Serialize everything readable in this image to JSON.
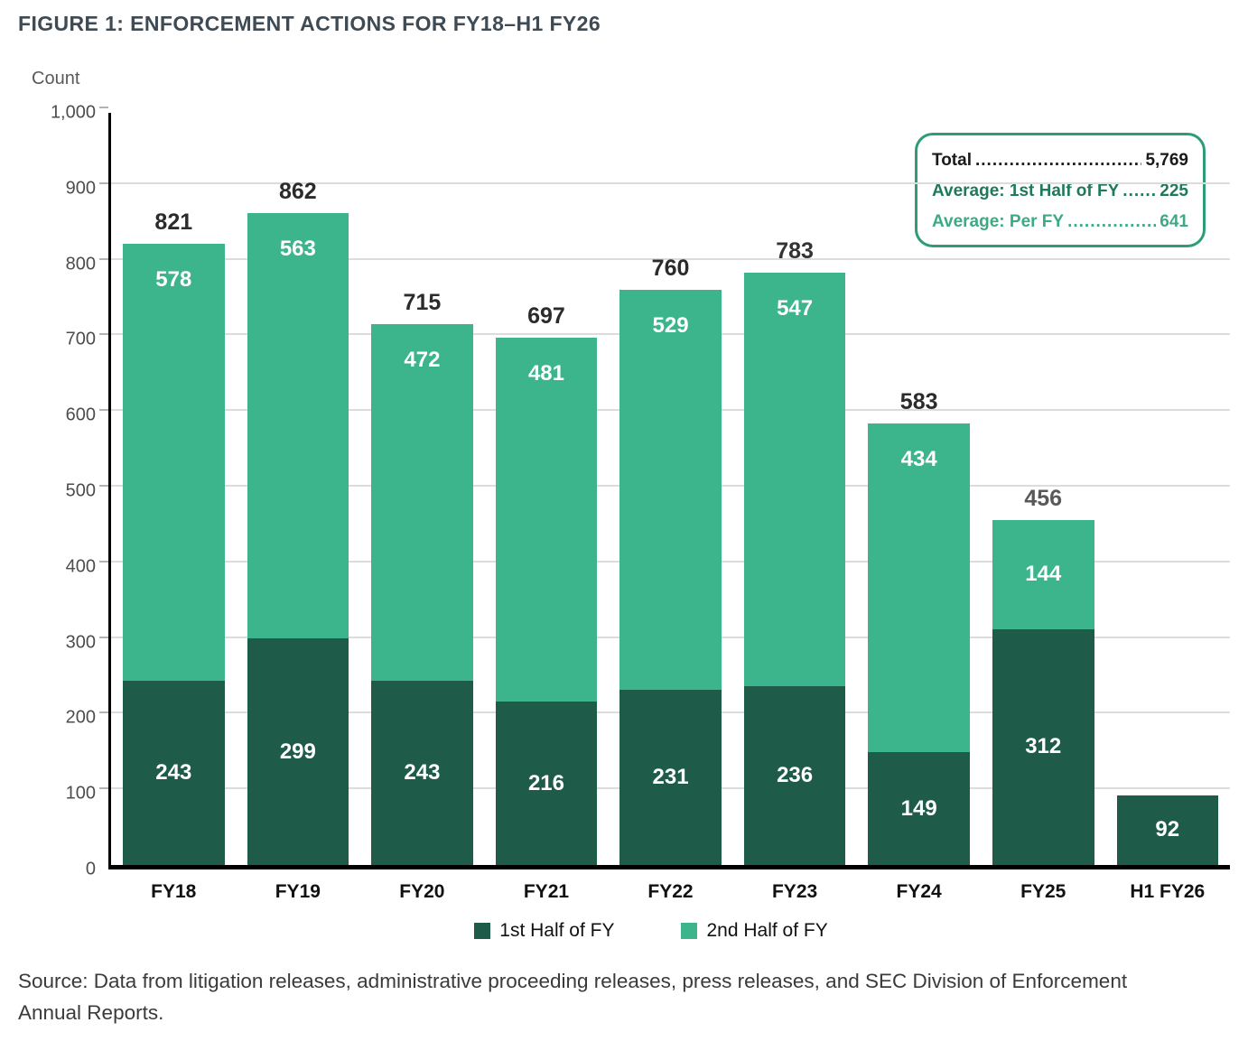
{
  "figure": {
    "title": "FIGURE 1: ENFORCEMENT ACTIONS FOR FY18–H1 FY26",
    "y_axis_title": "Count",
    "source": "Source: Data from litigation releases, administrative proceeding releases, press releases, and SEC Division of Enforcement Annual Reports."
  },
  "stats_box": {
    "lines": [
      {
        "label": "Total",
        "dots": "....................................",
        "value": "5,769",
        "style": "stat-black"
      },
      {
        "label": "Average: 1st Half of FY",
        "dots": "............",
        "value": "225",
        "style": "stat-green-dark"
      },
      {
        "label": "Average: Per FY",
        "dots": ".........................",
        "value": "641",
        "style": "stat-green-light"
      }
    ]
  },
  "chart_data": {
    "type": "bar",
    "stacked": true,
    "title": "FIGURE 1: ENFORCEMENT ACTIONS FOR FY18–H1 FY26",
    "ylabel": "Count",
    "ylim": [
      0,
      1000
    ],
    "ytick_interval": 100,
    "ytick_labels": [
      "0",
      "100",
      "200",
      "300",
      "400",
      "500",
      "600",
      "700",
      "800",
      "900",
      "1,000"
    ],
    "grid": true,
    "legend_position": "bottom",
    "categories": [
      "FY18",
      "FY19",
      "FY20",
      "FY21",
      "FY22",
      "FY23",
      "FY24",
      "FY25",
      "H1 FY26"
    ],
    "series": [
      {
        "name": "1st Half of FY",
        "color": "#1E5B49",
        "values": [
          243,
          299,
          243,
          216,
          231,
          236,
          149,
          312,
          92
        ]
      },
      {
        "name": "2nd Half of FY",
        "color": "#3CB48C",
        "values": [
          578,
          563,
          472,
          481,
          529,
          547,
          434,
          144,
          0
        ]
      }
    ],
    "totals": [
      821,
      862,
      715,
      697,
      760,
      783,
      583,
      456,
      null
    ],
    "total_label_colors": [
      "#2b2b2b",
      "#2b2b2b",
      "#2b2b2b",
      "#2b2b2b",
      "#2b2b2b",
      "#333333",
      "#2b2b2b",
      "#595959",
      null
    ]
  }
}
